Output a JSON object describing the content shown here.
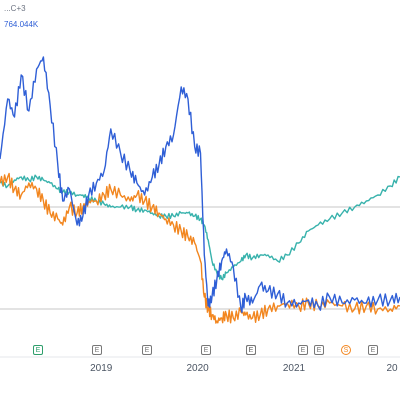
{
  "legend": {
    "header": "... 764.044K",
    "series_value": "764.044K",
    "partial_label": "...C+3"
  },
  "colors": {
    "blue": "#2f5fd6",
    "orange": "#f2861f",
    "teal": "#38b2ac",
    "gridline": "#c7c7c7",
    "marker_gray": "#777777",
    "marker_green": "#2e9e6b",
    "marker_orange": "#f2861f"
  },
  "markers": [
    {
      "label": "E",
      "kind": "earnings-green"
    },
    {
      "label": "E",
      "kind": "earnings"
    },
    {
      "label": "E",
      "kind": "earnings"
    },
    {
      "label": "E",
      "kind": "earnings"
    },
    {
      "label": "E",
      "kind": "earnings"
    },
    {
      "label": "E",
      "kind": "earnings"
    },
    {
      "label": "E",
      "kind": "earnings"
    },
    {
      "label": "E",
      "kind": "earnings"
    },
    {
      "label": "S",
      "kind": "split-orange"
    },
    {
      "label": "E",
      "kind": "earnings"
    }
  ],
  "chart_data": {
    "type": "line",
    "x_tick_labels": [
      "2019",
      "2020",
      "2021",
      "20"
    ],
    "series": [
      {
        "color": "#2f5fd6",
        "x": [
          2018.0,
          2018.08,
          2018.15,
          2018.22,
          2018.3,
          2018.38,
          2018.45,
          2018.52,
          2018.6,
          2018.65,
          2018.72,
          2018.8,
          2018.86,
          2018.92,
          2019.0,
          2019.08,
          2019.15,
          2019.25,
          2019.35,
          2019.42,
          2019.5,
          2019.58,
          2019.65,
          2019.72,
          2019.8,
          2019.88,
          2019.95,
          2020.02,
          2020.08,
          2020.12,
          2020.16,
          2020.2,
          2020.25,
          2020.3,
          2020.35,
          2020.42,
          2020.5,
          2020.55,
          2020.62,
          2020.7,
          2020.78,
          2020.88,
          2020.98,
          2021.1,
          2021.2,
          2021.3,
          2021.42,
          2021.55,
          2021.68,
          2021.8,
          2021.92,
          2022.05,
          2022.15
        ],
        "values": [
          0.52,
          0.72,
          0.66,
          0.8,
          0.68,
          0.82,
          0.86,
          0.7,
          0.5,
          0.38,
          0.42,
          0.3,
          0.33,
          0.4,
          0.44,
          0.48,
          0.62,
          0.54,
          0.48,
          0.44,
          0.4,
          0.46,
          0.5,
          0.56,
          0.6,
          0.76,
          0.72,
          0.56,
          0.54,
          0.2,
          0.03,
          0.06,
          0.12,
          0.18,
          0.22,
          0.16,
          0.02,
          0.06,
          0.04,
          0.1,
          0.08,
          0.07,
          0.04,
          0.04,
          0.05,
          0.03,
          0.06,
          0.04,
          0.05,
          0.04,
          0.05,
          0.05,
          0.06
        ]
      },
      {
        "color": "#f2861f",
        "x": [
          2018.0,
          2018.08,
          2018.15,
          2018.22,
          2018.3,
          2018.38,
          2018.45,
          2018.52,
          2018.6,
          2018.65,
          2018.72,
          2018.8,
          2018.86,
          2018.92,
          2019.0,
          2019.08,
          2019.15,
          2019.25,
          2019.35,
          2019.42,
          2019.5,
          2019.58,
          2019.65,
          2019.72,
          2019.8,
          2019.88,
          2019.95,
          2020.02,
          2020.08,
          2020.12,
          2020.16,
          2020.2,
          2020.25,
          2020.3,
          2020.35,
          2020.42,
          2020.5,
          2020.55,
          2020.62,
          2020.7,
          2020.78,
          2020.88,
          2020.98,
          2021.1,
          2021.2,
          2021.3,
          2021.42,
          2021.55,
          2021.68,
          2021.8,
          2021.92,
          2022.05,
          2022.15
        ],
        "values": [
          0.44,
          0.46,
          0.42,
          0.4,
          0.44,
          0.42,
          0.38,
          0.34,
          0.32,
          0.3,
          0.36,
          0.34,
          0.36,
          0.38,
          0.38,
          0.4,
          0.42,
          0.4,
          0.38,
          0.4,
          0.38,
          0.36,
          0.34,
          0.32,
          0.3,
          0.28,
          0.26,
          0.24,
          0.18,
          0.06,
          0.02,
          0.0,
          -0.02,
          -0.01,
          0.0,
          -0.01,
          0.01,
          0.0,
          -0.01,
          0.0,
          0.02,
          0.03,
          0.04,
          0.03,
          0.04,
          0.03,
          0.04,
          0.03,
          0.02,
          0.03,
          0.02,
          0.02,
          0.03
        ]
      },
      {
        "color": "#38b2ac",
        "x": [
          2018.0,
          2018.08,
          2018.15,
          2018.22,
          2018.3,
          2018.38,
          2018.45,
          2018.52,
          2018.6,
          2018.65,
          2018.72,
          2018.8,
          2018.86,
          2018.92,
          2019.0,
          2019.08,
          2019.15,
          2019.25,
          2019.35,
          2019.42,
          2019.5,
          2019.58,
          2019.65,
          2019.72,
          2019.8,
          2019.88,
          2019.95,
          2020.02,
          2020.08,
          2020.12,
          2020.16,
          2020.2,
          2020.25,
          2020.3,
          2020.35,
          2020.42,
          2020.5,
          2020.55,
          2020.62,
          2020.7,
          2020.78,
          2020.88,
          2020.98,
          2021.1,
          2021.2,
          2021.3,
          2021.42,
          2021.55,
          2021.68,
          2021.8,
          2021.92,
          2022.05,
          2022.15
        ],
        "values": [
          0.44,
          0.43,
          0.45,
          0.46,
          0.45,
          0.46,
          0.45,
          0.44,
          0.42,
          0.41,
          0.41,
          0.4,
          0.4,
          0.39,
          0.38,
          0.37,
          0.36,
          0.36,
          0.36,
          0.35,
          0.35,
          0.34,
          0.33,
          0.33,
          0.33,
          0.34,
          0.34,
          0.33,
          0.32,
          0.3,
          0.25,
          0.18,
          0.14,
          0.12,
          0.14,
          0.16,
          0.18,
          0.2,
          0.19,
          0.2,
          0.2,
          0.18,
          0.2,
          0.24,
          0.28,
          0.3,
          0.32,
          0.34,
          0.36,
          0.38,
          0.4,
          0.43,
          0.46
        ]
      }
    ],
    "x_range": [
      2018.0,
      2022.15
    ],
    "y_range": [
      -0.05,
      0.95
    ],
    "reference_lines": [
      0.36,
      0.02
    ],
    "grid": false
  }
}
